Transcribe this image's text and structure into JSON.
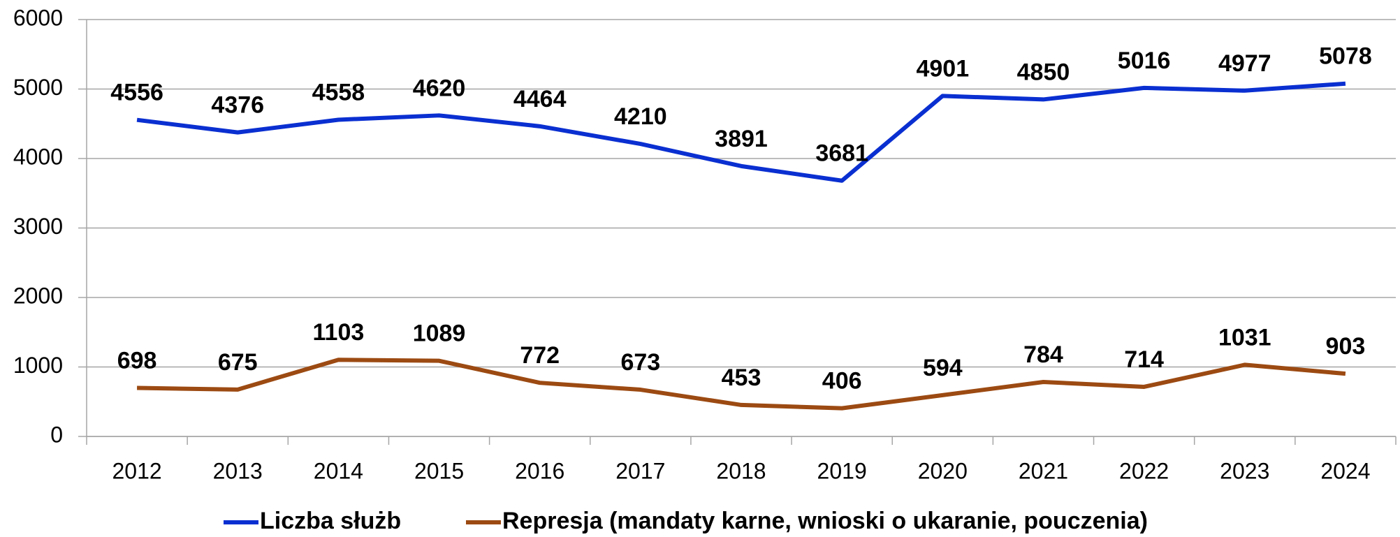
{
  "chart_data": {
    "type": "line",
    "categories": [
      "2012",
      "2013",
      "2014",
      "2015",
      "2016",
      "2017",
      "2018",
      "2019",
      "2020",
      "2021",
      "2022",
      "2023",
      "2024"
    ],
    "series": [
      {
        "name": "Liczba służb",
        "color": "#0a2fd1",
        "values": [
          4556,
          4376,
          4558,
          4620,
          4464,
          4210,
          3891,
          3681,
          4901,
          4850,
          5016,
          4977,
          5078
        ]
      },
      {
        "name": "Represja (mandaty karne, wnioski o ukaranie, pouczenia)",
        "color": "#9c4a12",
        "values": [
          698,
          675,
          1103,
          1089,
          772,
          673,
          453,
          406,
          594,
          784,
          714,
          1031,
          903
        ]
      }
    ],
    "ylim": [
      0,
      6000
    ],
    "yticks": [
      0,
      1000,
      2000,
      3000,
      4000,
      5000,
      6000
    ],
    "grid": true,
    "legend": "bottom"
  }
}
